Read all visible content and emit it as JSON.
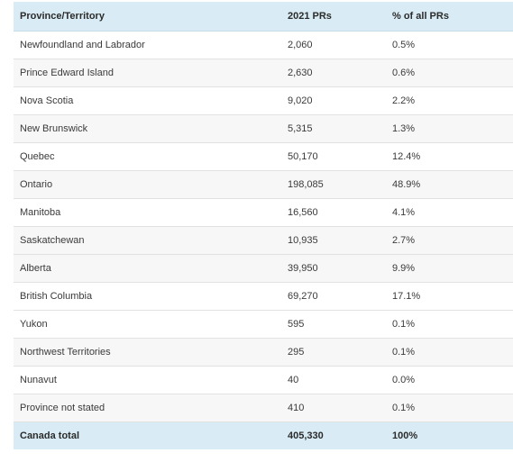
{
  "table": {
    "headers": [
      "Province/Territory",
      "2021 PRs",
      "% of all PRs"
    ],
    "rows": [
      [
        "Newfoundland and Labrador",
        "2,060",
        "0.5%"
      ],
      [
        "Prince Edward Island",
        "2,630",
        "0.6%"
      ],
      [
        "Nova Scotia",
        "9,020",
        "2.2%"
      ],
      [
        "New Brunswick",
        "5,315",
        "1.3%"
      ],
      [
        "Quebec",
        "50,170",
        "12.4%"
      ],
      [
        "Ontario",
        "198,085",
        "48.9%"
      ],
      [
        "Manitoba",
        "16,560",
        "4.1%"
      ],
      [
        "Saskatchewan",
        "10,935",
        "2.7%"
      ],
      [
        "Alberta",
        "39,950",
        "9.9%"
      ],
      [
        "British Columbia",
        "69,270",
        "17.1%"
      ],
      [
        "Yukon",
        "595",
        "0.1%"
      ],
      [
        "Northwest Territories",
        "295",
        "0.1%"
      ],
      [
        "Nunavut",
        "40",
        "0.0%"
      ],
      [
        "Province not stated",
        "410",
        "0.1%"
      ]
    ],
    "total": [
      "Canada total",
      "405,330",
      "100%"
    ]
  },
  "colors": {
    "header_bg": "#d9ecf5",
    "alt_row_bg": "#f7f7f7",
    "total_bg": "#d9ecf5"
  }
}
